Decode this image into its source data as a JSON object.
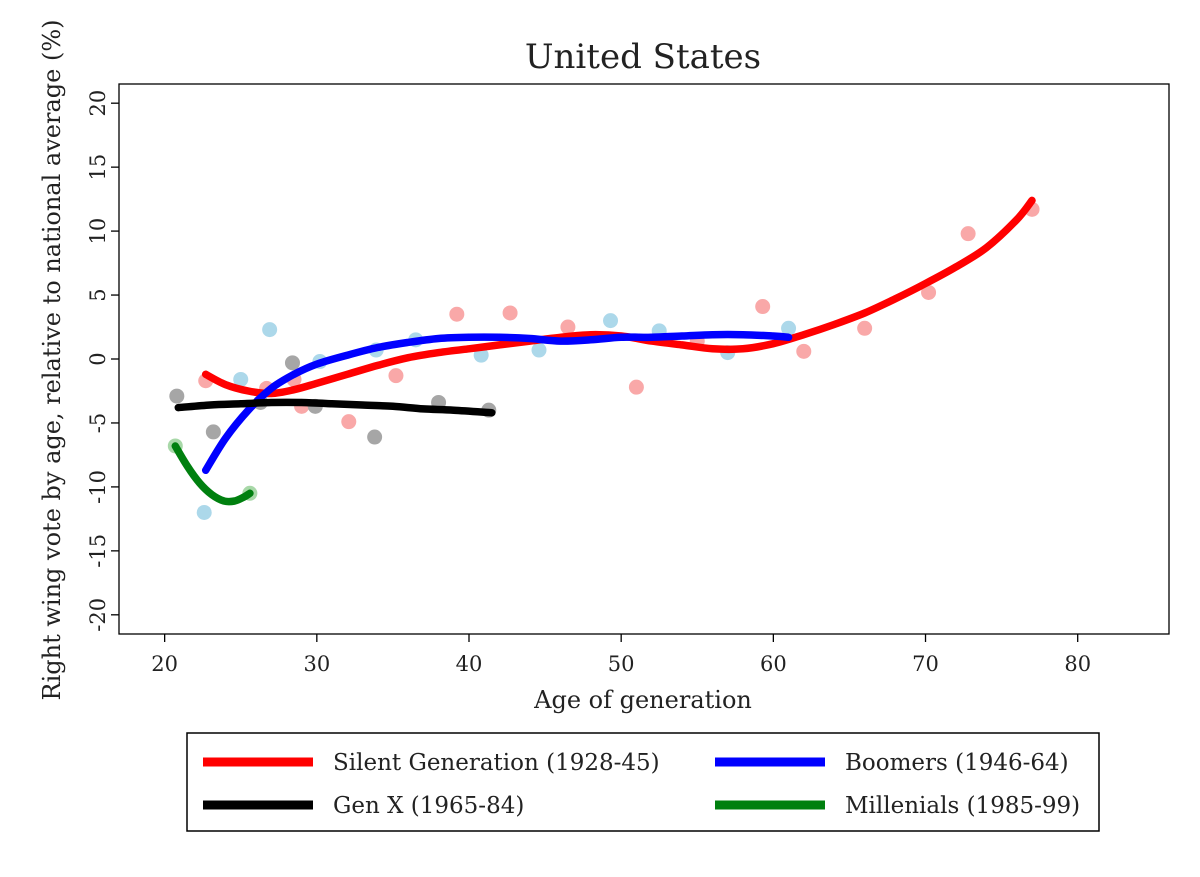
{
  "chart_data": {
    "type": "scatter",
    "title": "United States",
    "xlabel": "Age of generation",
    "ylabel": "Right wing vote by age, relative to national average (%)",
    "xlim": [
      17,
      86
    ],
    "ylim": [
      -21.5,
      21.5
    ],
    "x_ticks": [
      20,
      30,
      40,
      50,
      60,
      70,
      80
    ],
    "y_ticks": [
      -20,
      -15,
      -10,
      -5,
      0,
      5,
      10,
      15,
      20
    ],
    "x_tick_labels": [
      "20",
      "30",
      "40",
      "50",
      "60",
      "70",
      "80"
    ],
    "y_tick_labels": [
      "-20",
      "-15",
      "-10",
      "-5",
      "0",
      "5",
      "10",
      "15",
      "20"
    ],
    "grid": false,
    "legend_position": "bottom",
    "series": [
      {
        "name": "Silent Generation (1928-45)",
        "color": "#ff0000",
        "point_color": "#f9a8a8",
        "points": [
          [
            22.7,
            -1.7
          ],
          [
            26.7,
            -2.3
          ],
          [
            28.5,
            -1.6
          ],
          [
            29.0,
            -3.7
          ],
          [
            32.1,
            -4.9
          ],
          [
            35.2,
            -1.3
          ],
          [
            39.2,
            3.5
          ],
          [
            42.7,
            3.6
          ],
          [
            46.5,
            2.5
          ],
          [
            51.0,
            -2.2
          ],
          [
            55.0,
            1.4
          ],
          [
            59.3,
            4.1
          ],
          [
            62.0,
            0.6
          ],
          [
            66.0,
            2.4
          ],
          [
            70.2,
            5.2
          ],
          [
            72.8,
            9.8
          ],
          [
            77.0,
            11.7
          ]
        ],
        "curve": [
          [
            22.7,
            -1.2
          ],
          [
            24.0,
            -2.0
          ],
          [
            25.5,
            -2.5
          ],
          [
            27.0,
            -2.7
          ],
          [
            28.5,
            -2.4
          ],
          [
            30.0,
            -1.9
          ],
          [
            32.0,
            -1.2
          ],
          [
            34.0,
            -0.5
          ],
          [
            36.0,
            0.1
          ],
          [
            38.0,
            0.5
          ],
          [
            40.0,
            0.8
          ],
          [
            42.0,
            1.1
          ],
          [
            44.0,
            1.4
          ],
          [
            46.0,
            1.7
          ],
          [
            48.0,
            1.9
          ],
          [
            50.0,
            1.8
          ],
          [
            52.0,
            1.4
          ],
          [
            54.0,
            1.1
          ],
          [
            56.0,
            0.8
          ],
          [
            58.0,
            0.8
          ],
          [
            60.0,
            1.2
          ],
          [
            62.0,
            1.9
          ],
          [
            64.0,
            2.7
          ],
          [
            66.0,
            3.6
          ],
          [
            68.0,
            4.7
          ],
          [
            70.0,
            5.9
          ],
          [
            72.0,
            7.2
          ],
          [
            74.0,
            8.7
          ],
          [
            76.0,
            10.9
          ],
          [
            77.0,
            12.4
          ]
        ]
      },
      {
        "name": "Boomers (1946-64)",
        "color": "#0000ff",
        "point_color": "#acd8ea",
        "points": [
          [
            22.6,
            -12.0
          ],
          [
            25.0,
            -1.6
          ],
          [
            26.9,
            2.3
          ],
          [
            30.2,
            -0.2
          ],
          [
            33.9,
            0.7
          ],
          [
            36.5,
            1.5
          ],
          [
            40.8,
            0.3
          ],
          [
            44.6,
            0.7
          ],
          [
            49.3,
            3.0
          ],
          [
            52.5,
            2.2
          ],
          [
            57.0,
            0.5
          ],
          [
            61.0,
            2.4
          ]
        ],
        "curve": [
          [
            22.7,
            -8.7
          ],
          [
            24.0,
            -6.2
          ],
          [
            25.5,
            -4.0
          ],
          [
            27.0,
            -2.3
          ],
          [
            28.5,
            -1.2
          ],
          [
            30.0,
            -0.4
          ],
          [
            32.0,
            0.3
          ],
          [
            34.0,
            0.9
          ],
          [
            36.0,
            1.3
          ],
          [
            38.0,
            1.6
          ],
          [
            40.0,
            1.7
          ],
          [
            42.0,
            1.7
          ],
          [
            44.0,
            1.6
          ],
          [
            46.0,
            1.4
          ],
          [
            48.0,
            1.5
          ],
          [
            50.0,
            1.7
          ],
          [
            52.0,
            1.7
          ],
          [
            54.0,
            1.8
          ],
          [
            56.0,
            1.9
          ],
          [
            58.0,
            1.9
          ],
          [
            60.0,
            1.8
          ],
          [
            61.0,
            1.7
          ]
        ]
      },
      {
        "name": "Gen X (1965-84)",
        "color": "#000000",
        "point_color": "#a6a6a6",
        "points": [
          [
            20.8,
            -2.9
          ],
          [
            23.2,
            -5.7
          ],
          [
            26.3,
            -3.4
          ],
          [
            28.4,
            -0.3
          ],
          [
            29.9,
            -3.7
          ],
          [
            33.8,
            -6.1
          ],
          [
            38.0,
            -3.4
          ],
          [
            41.3,
            -4.0
          ]
        ],
        "curve": [
          [
            20.9,
            -3.8
          ],
          [
            23.0,
            -3.6
          ],
          [
            25.0,
            -3.5
          ],
          [
            27.0,
            -3.4
          ],
          [
            29.0,
            -3.4
          ],
          [
            31.0,
            -3.5
          ],
          [
            33.0,
            -3.6
          ],
          [
            35.0,
            -3.7
          ],
          [
            37.0,
            -3.9
          ],
          [
            39.0,
            -4.0
          ],
          [
            41.5,
            -4.2
          ]
        ]
      },
      {
        "name": "Millenials (1985-99)",
        "color": "#00800f",
        "point_color": "#a8d8a8",
        "points": [
          [
            20.7,
            -6.8
          ],
          [
            25.6,
            -10.5
          ]
        ],
        "curve": [
          [
            20.7,
            -6.8
          ],
          [
            21.5,
            -8.4
          ],
          [
            22.3,
            -9.7
          ],
          [
            23.1,
            -10.6
          ],
          [
            23.9,
            -11.1
          ],
          [
            24.6,
            -11.1
          ],
          [
            25.2,
            -10.8
          ],
          [
            25.6,
            -10.5
          ]
        ]
      }
    ]
  }
}
